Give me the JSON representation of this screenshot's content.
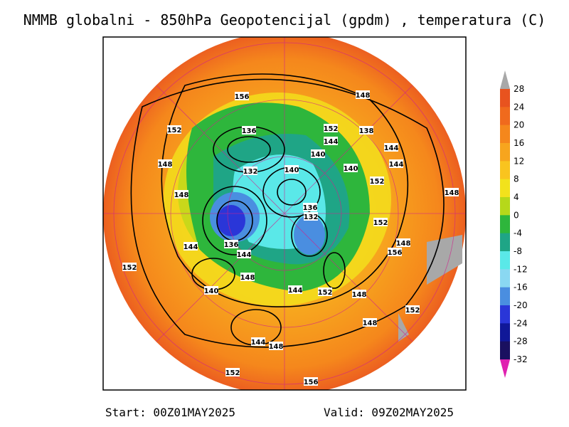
{
  "title": "NMMB globalni - 850hPa Geopotencijal (gpdm) , temperatura (C)",
  "colorbar": {
    "labels": [
      28,
      24,
      20,
      16,
      12,
      8,
      4,
      0,
      -4,
      -8,
      -12,
      -16,
      -20,
      -24,
      -28,
      -32
    ],
    "colors": [
      "#e8531f",
      "#f06a1d",
      "#f5871c",
      "#f7a51e",
      "#f9c41f",
      "#f2e21c",
      "#b6d81a",
      "#2eb63c",
      "#1fa586",
      "#5ae8e8",
      "#8ad8f2",
      "#4a8ee0",
      "#2a36d8",
      "#101898",
      "#1a1060"
    ],
    "top_color": "#a8a8a8",
    "bottom_color": "#e020b0"
  },
  "contour_labels": [
    156,
    148,
    152,
    136,
    152,
    144,
    138,
    140,
    144,
    148,
    132,
    140,
    140,
    144,
    152,
    148,
    148,
    136,
    132,
    152,
    144,
    136,
    144,
    148,
    156,
    152,
    148,
    140,
    144,
    152,
    148,
    152,
    148,
    144,
    148,
    152,
    156
  ],
  "footer": {
    "start": "Start: 00Z01MAY2025",
    "valid": "Valid: 09Z02MAY2025"
  }
}
